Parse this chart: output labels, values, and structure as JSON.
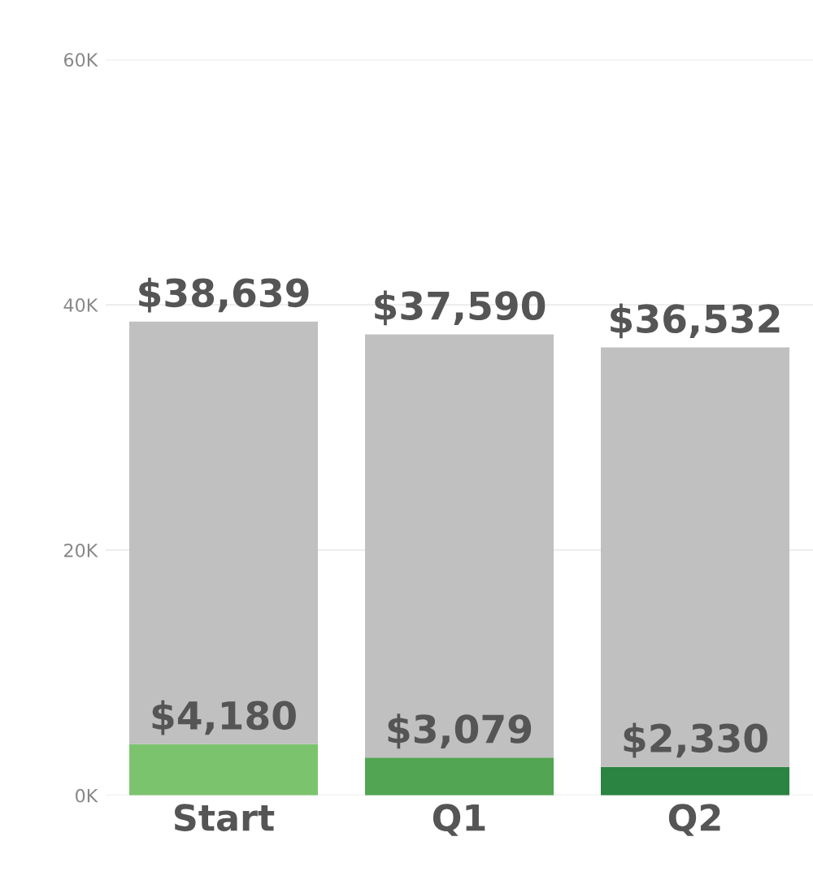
{
  "chart_data": {
    "type": "bar",
    "stacked": true,
    "categories": [
      "Start",
      "Q1",
      "Q2"
    ],
    "series": [
      {
        "colors": [
          "#7cc36e",
          "#52a552",
          "#2b8441"
        ],
        "values": [
          4180,
          3079,
          2330
        ],
        "value_labels": [
          "$4,180",
          "$3,079",
          "$2,330"
        ]
      },
      {
        "color": "#c0c0c0",
        "values": [
          34459,
          34511,
          34202
        ]
      }
    ],
    "totals": [
      "$38,639",
      "$37,590",
      "$36,532"
    ],
    "ylim": [
      0,
      60000
    ],
    "yticks": [
      {
        "value": 0,
        "label": "0K"
      },
      {
        "value": 20000,
        "label": "20K"
      },
      {
        "value": 40000,
        "label": "40K"
      },
      {
        "value": 60000,
        "label": "60K"
      }
    ],
    "grid": "y",
    "legend": false
  }
}
